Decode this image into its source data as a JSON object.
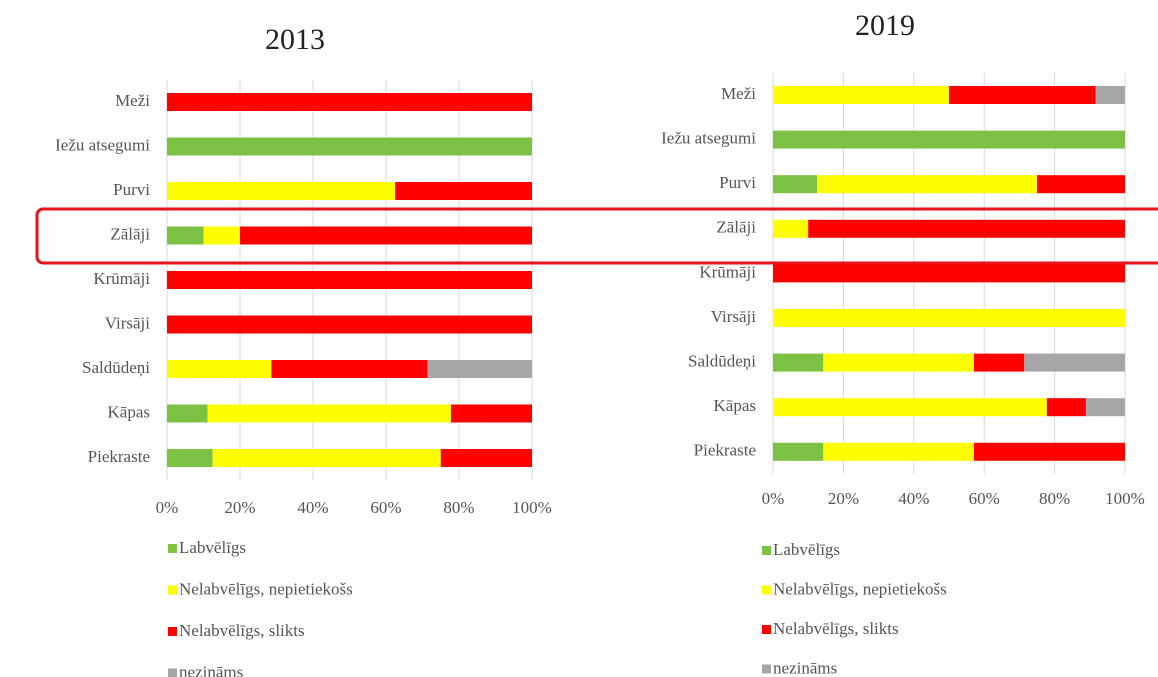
{
  "chart_data": [
    {
      "type": "stacked-bar",
      "orientation": "horizontal",
      "title": "2013",
      "categories": [
        "Meži",
        "Iežu atsegumi",
        "Purvi",
        "Zālāji",
        "Krūmāji",
        "Virsāji",
        "Saldūdeņi",
        "Kāpas",
        "Piekraste"
      ],
      "series": [
        {
          "name": "Labvēlīgs",
          "color": "#7cc143",
          "values": [
            0,
            100,
            0,
            10,
            0,
            0,
            0,
            11.1,
            12.5
          ]
        },
        {
          "name": "Nelabvēlīgs, nepietiekošs",
          "color": "#ffff00",
          "values": [
            0,
            0,
            62.5,
            10,
            0,
            0,
            28.6,
            66.7,
            62.5
          ]
        },
        {
          "name": "Nelabvēlīgs, slikts",
          "color": "#ff0000",
          "values": [
            100,
            0,
            37.5,
            80,
            100,
            100,
            42.8,
            22.2,
            25
          ]
        },
        {
          "name": "nezināms",
          "color": "#a6a6a6",
          "values": [
            0,
            0,
            0,
            0,
            0,
            0,
            28.6,
            0,
            0
          ]
        }
      ],
      "xlim": [
        0,
        100
      ],
      "xticks": [
        {
          "value": 0,
          "label": "0%"
        },
        {
          "value": 20,
          "label": "20%"
        },
        {
          "value": 40,
          "label": "40%"
        },
        {
          "value": 60,
          "label": "60%"
        },
        {
          "value": 80,
          "label": "80%"
        },
        {
          "value": 100,
          "label": "100%"
        }
      ],
      "grid": true,
      "legend": "bottom"
    },
    {
      "type": "stacked-bar",
      "orientation": "horizontal",
      "title": "2019",
      "categories": [
        "Meži",
        "Iežu atsegumi",
        "Purvi",
        "Zālāji",
        "Krūmāji",
        "Virsāji",
        "Saldūdeņi",
        "Kāpas",
        "Piekraste"
      ],
      "series": [
        {
          "name": "Labvēlīgs",
          "color": "#7cc143",
          "values": [
            0,
            100,
            12.5,
            0,
            0,
            0,
            14.3,
            0,
            14.3
          ]
        },
        {
          "name": "Nelabvēlīgs, nepietiekošs",
          "color": "#ffff00",
          "values": [
            50,
            0,
            62.5,
            10,
            0,
            100,
            42.8,
            77.8,
            42.8
          ]
        },
        {
          "name": "Nelabvēlīgs, slikts",
          "color": "#ff0000",
          "values": [
            41.7,
            0,
            25,
            90,
            100,
            0,
            14.3,
            11.1,
            42.9
          ]
        },
        {
          "name": "nezināms",
          "color": "#a6a6a6",
          "values": [
            8.3,
            0,
            0,
            0,
            0,
            0,
            28.6,
            11.1,
            0
          ]
        }
      ],
      "xlim": [
        0,
        100
      ],
      "xticks": [
        {
          "value": 0,
          "label": "0%"
        },
        {
          "value": 20,
          "label": "20%"
        },
        {
          "value": 40,
          "label": "40%"
        },
        {
          "value": 60,
          "label": "60%"
        },
        {
          "value": 80,
          "label": "80%"
        },
        {
          "value": 100,
          "label": "100%"
        }
      ],
      "grid": true,
      "legend": "bottom"
    }
  ]
}
